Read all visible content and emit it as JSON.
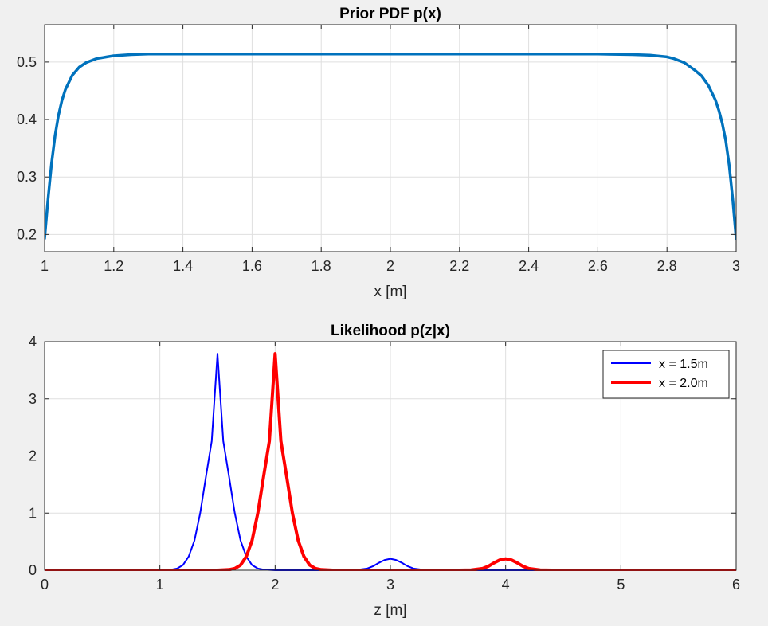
{
  "figure": {
    "background": "#f0f0f0",
    "axes_background": "#ffffff",
    "grid_color": "#dfdfdf"
  },
  "chart_data": [
    {
      "type": "line",
      "title": "Prior PDF p(x)",
      "xlabel": "x [m]",
      "ylabel": "",
      "xlim": [
        1,
        3
      ],
      "ylim": [
        0.17,
        0.565
      ],
      "xticks": [
        1,
        1.2,
        1.4,
        1.6,
        1.8,
        2,
        2.2,
        2.4,
        2.6,
        2.8,
        3
      ],
      "xtick_labels": [
        "1",
        "1.2",
        "1.4",
        "1.6",
        "1.8",
        "2",
        "2.2",
        "2.4",
        "2.6",
        "2.8",
        "3"
      ],
      "yticks": [
        0.2,
        0.3,
        0.4,
        0.5
      ],
      "ytick_labels": [
        "0.2",
        "0.3",
        "0.4",
        "0.5"
      ],
      "grid": true,
      "series": [
        {
          "color": "#0072bd",
          "line_width": 3.5,
          "x": [
            1.0,
            1.01,
            1.02,
            1.03,
            1.04,
            1.05,
            1.06,
            1.08,
            1.1,
            1.12,
            1.15,
            1.18,
            1.2,
            1.25,
            1.3,
            1.4,
            2.0,
            2.6,
            2.7,
            2.75,
            2.8,
            2.82,
            2.85,
            2.88,
            2.9,
            2.92,
            2.94,
            2.95,
            2.96,
            2.97,
            2.98,
            2.99,
            3.0
          ],
          "y": [
            0.193,
            0.262,
            0.323,
            0.371,
            0.407,
            0.433,
            0.452,
            0.477,
            0.491,
            0.499,
            0.506,
            0.509,
            0.511,
            0.513,
            0.514,
            0.514,
            0.514,
            0.514,
            0.513,
            0.512,
            0.509,
            0.506,
            0.499,
            0.486,
            0.476,
            0.459,
            0.434,
            0.416,
            0.393,
            0.363,
            0.32,
            0.262,
            0.193
          ]
        }
      ]
    },
    {
      "type": "line",
      "title": "Likelihood p(z|x)",
      "xlabel": "z [m]",
      "ylabel": "",
      "xlim": [
        0,
        6
      ],
      "ylim": [
        0,
        4
      ],
      "xticks": [
        0,
        1,
        2,
        3,
        4,
        5,
        6
      ],
      "xtick_labels": [
        "0",
        "1",
        "2",
        "3",
        "4",
        "5",
        "6"
      ],
      "yticks": [
        0,
        1,
        2,
        3,
        4
      ],
      "ytick_labels": [
        "0",
        "1",
        "2",
        "3",
        "4"
      ],
      "grid": true,
      "legend": "top-right",
      "series": [
        {
          "name": "x = 1.5m",
          "color": "#0000ff",
          "line_width": 2,
          "x": [
            0,
            1.0,
            1.1,
            1.15,
            1.2,
            1.25,
            1.3,
            1.35,
            1.4,
            1.45,
            1.5,
            1.55,
            1.6,
            1.65,
            1.7,
            1.75,
            1.8,
            1.85,
            1.9,
            2.0,
            2.6,
            2.7,
            2.8,
            2.85,
            2.9,
            2.95,
            3.0,
            3.05,
            3.1,
            3.15,
            3.2,
            3.3,
            3.4,
            6
          ],
          "y": [
            0,
            0.0,
            0.01,
            0.03,
            0.09,
            0.24,
            0.52,
            1.0,
            1.64,
            2.26,
            3.79,
            2.26,
            1.64,
            1.0,
            0.52,
            0.24,
            0.09,
            0.03,
            0.01,
            0.0,
            0.0,
            0.004,
            0.03,
            0.07,
            0.13,
            0.18,
            0.2,
            0.18,
            0.13,
            0.07,
            0.03,
            0.004,
            0.0,
            0.0
          ]
        },
        {
          "name": "x = 2.0m",
          "color": "#ff0000",
          "line_width": 4,
          "x": [
            0,
            1.5,
            1.6,
            1.65,
            1.7,
            1.75,
            1.8,
            1.85,
            1.9,
            1.95,
            2.0,
            2.05,
            2.1,
            2.15,
            2.2,
            2.25,
            2.3,
            2.35,
            2.4,
            2.5,
            3.6,
            3.7,
            3.8,
            3.85,
            3.9,
            3.95,
            4.0,
            4.05,
            4.1,
            4.15,
            4.2,
            4.3,
            4.4,
            6
          ],
          "y": [
            0,
            0.0,
            0.01,
            0.03,
            0.09,
            0.24,
            0.52,
            1.0,
            1.64,
            2.26,
            3.79,
            2.26,
            1.64,
            1.0,
            0.52,
            0.24,
            0.09,
            0.03,
            0.01,
            0.0,
            0.0,
            0.004,
            0.03,
            0.07,
            0.13,
            0.18,
            0.2,
            0.18,
            0.13,
            0.07,
            0.03,
            0.004,
            0.0,
            0.0
          ]
        }
      ]
    }
  ]
}
